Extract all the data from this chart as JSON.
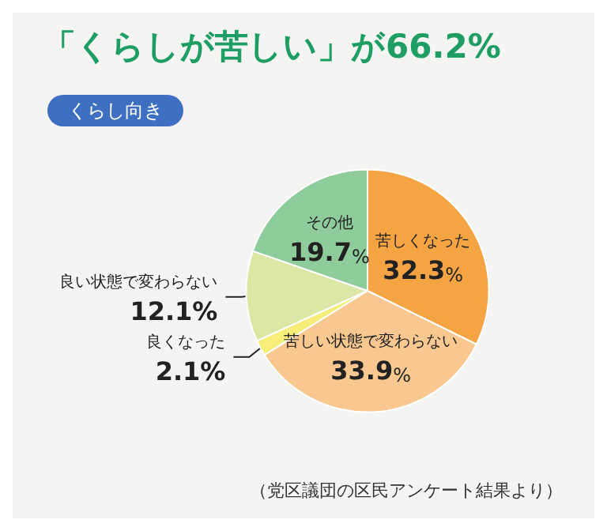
{
  "chart_data": {
    "type": "pie",
    "title": "「くらしが苦しい」が66.2%",
    "subtitle": "くらし向き",
    "categories": [
      "苦しくなった",
      "苦しい状態で変わらない",
      "良くなった",
      "良い状態で変わらない",
      "その他"
    ],
    "values": [
      32.3,
      33.9,
      2.1,
      12.1,
      19.7
    ],
    "colors": [
      "#f5a443",
      "#f8c890",
      "#f6ee78",
      "#dbe7a4",
      "#8fcc9c"
    ],
    "value_labels": [
      "32.3%",
      "33.9%",
      "2.1%",
      "12.1%",
      "19.7%"
    ],
    "legend": false,
    "annotations": [
      "（党区議団の区民アンケート結果より）"
    ]
  }
}
